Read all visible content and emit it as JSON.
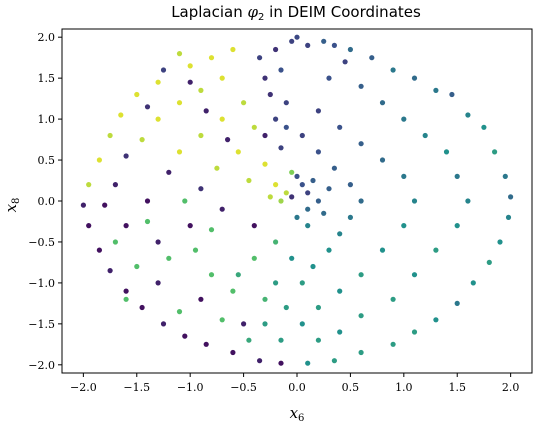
{
  "chart_data": {
    "type": "scatter",
    "title": "Laplacian φ2 in DEIM Coordinates",
    "title_parts": {
      "before": "Laplacian ",
      "symbol": "φ",
      "sub": "2",
      "after": " in DEIM Coordinates"
    },
    "xlabel": "x6",
    "xlabel_parts": {
      "var": "x",
      "sub": "6"
    },
    "ylabel": "x8",
    "ylabel_parts": {
      "var": "x",
      "sub": "8"
    },
    "xlim": [
      -2.2,
      2.2
    ],
    "ylim": [
      -2.1,
      2.1
    ],
    "xticks": [
      -2.0,
      -1.5,
      -1.0,
      -0.5,
      0.0,
      0.5,
      1.0,
      1.5,
      2.0
    ],
    "xtick_labels": [
      "−2.0",
      "−1.5",
      "−1.0",
      "−0.5",
      "0.0",
      "0.5",
      "1.0",
      "1.5",
      "2.0"
    ],
    "yticks": [
      -2.0,
      -1.5,
      -1.0,
      -0.5,
      0.0,
      0.5,
      1.0,
      1.5,
      2.0
    ],
    "ytick_labels": [
      "−2.0",
      "−1.5",
      "−1.0",
      "−0.5",
      "0.0",
      "0.5",
      "1.0",
      "1.5",
      "2.0"
    ],
    "grid": false,
    "legend": "none",
    "colormap": "viridis",
    "colormap_stops": [
      "#440154",
      "#3b528b",
      "#21918c",
      "#5ec962",
      "#fde725"
    ],
    "color_value_range": [
      0,
      1
    ],
    "points": [
      {
        "x": 0.0,
        "y": 2.0,
        "c": 0.22
      },
      {
        "x": 0.1,
        "y": 1.9,
        "c": 0.2
      },
      {
        "x": 0.25,
        "y": 1.95,
        "c": 0.3
      },
      {
        "x": 0.35,
        "y": 1.9,
        "c": 0.25
      },
      {
        "x": 0.5,
        "y": 1.85,
        "c": 0.35
      },
      {
        "x": 0.45,
        "y": 1.7,
        "c": 0.2
      },
      {
        "x": 0.7,
        "y": 1.75,
        "c": 0.3
      },
      {
        "x": 0.9,
        "y": 1.6,
        "c": 0.4
      },
      {
        "x": 1.1,
        "y": 1.5,
        "c": 0.35
      },
      {
        "x": 1.3,
        "y": 1.35,
        "c": 0.4
      },
      {
        "x": 1.45,
        "y": 1.3,
        "c": 0.3
      },
      {
        "x": 1.6,
        "y": 1.05,
        "c": 0.45
      },
      {
        "x": 1.75,
        "y": 0.9,
        "c": 0.5
      },
      {
        "x": 1.85,
        "y": 0.6,
        "c": 0.55
      },
      {
        "x": 1.95,
        "y": 0.3,
        "c": 0.4
      },
      {
        "x": 2.0,
        "y": 0.05,
        "c": 0.35
      },
      {
        "x": 1.98,
        "y": -0.2,
        "c": 0.45
      },
      {
        "x": 1.9,
        "y": -0.5,
        "c": 0.5
      },
      {
        "x": 1.8,
        "y": -0.75,
        "c": 0.55
      },
      {
        "x": 1.65,
        "y": -1.0,
        "c": 0.5
      },
      {
        "x": 1.5,
        "y": -1.25,
        "c": 0.4
      },
      {
        "x": 1.3,
        "y": -1.45,
        "c": 0.5
      },
      {
        "x": 1.1,
        "y": -1.6,
        "c": 0.55
      },
      {
        "x": 0.9,
        "y": -1.75,
        "c": 0.55
      },
      {
        "x": 0.6,
        "y": -1.85,
        "c": 0.55
      },
      {
        "x": 0.35,
        "y": -1.95,
        "c": 0.55
      },
      {
        "x": 0.1,
        "y": -1.98,
        "c": 0.5
      },
      {
        "x": 0.3,
        "y": 1.5,
        "c": 0.25
      },
      {
        "x": 0.6,
        "y": 1.4,
        "c": 0.3
      },
      {
        "x": 0.8,
        "y": 1.2,
        "c": 0.35
      },
      {
        "x": 1.0,
        "y": 1.0,
        "c": 0.4
      },
      {
        "x": 1.2,
        "y": 0.8,
        "c": 0.45
      },
      {
        "x": 1.4,
        "y": 0.6,
        "c": 0.5
      },
      {
        "x": 1.5,
        "y": 0.3,
        "c": 0.4
      },
      {
        "x": 1.6,
        "y": 0.0,
        "c": 0.45
      },
      {
        "x": 1.5,
        "y": -0.3,
        "c": 0.5
      },
      {
        "x": 1.3,
        "y": -0.6,
        "c": 0.55
      },
      {
        "x": 1.1,
        "y": -0.9,
        "c": 0.5
      },
      {
        "x": 0.9,
        "y": -1.2,
        "c": 0.55
      },
      {
        "x": 0.6,
        "y": -1.4,
        "c": 0.55
      },
      {
        "x": 0.4,
        "y": -1.6,
        "c": 0.5
      },
      {
        "x": 0.2,
        "y": -1.7,
        "c": 0.55
      },
      {
        "x": 0.2,
        "y": 1.1,
        "c": 0.2
      },
      {
        "x": 0.4,
        "y": 0.9,
        "c": 0.25
      },
      {
        "x": 0.6,
        "y": 0.7,
        "c": 0.3
      },
      {
        "x": 0.8,
        "y": 0.5,
        "c": 0.35
      },
      {
        "x": 1.0,
        "y": 0.3,
        "c": 0.4
      },
      {
        "x": 1.1,
        "y": 0.0,
        "c": 0.45
      },
      {
        "x": 1.0,
        "y": -0.3,
        "c": 0.5
      },
      {
        "x": 0.8,
        "y": -0.6,
        "c": 0.5
      },
      {
        "x": 0.6,
        "y": -0.9,
        "c": 0.55
      },
      {
        "x": 0.4,
        "y": -1.1,
        "c": 0.5
      },
      {
        "x": 0.2,
        "y": -1.3,
        "c": 0.55
      },
      {
        "x": 0.05,
        "y": -1.5,
        "c": 0.5
      },
      {
        "x": 0.05,
        "y": 0.8,
        "c": 0.2
      },
      {
        "x": 0.2,
        "y": 0.6,
        "c": 0.25
      },
      {
        "x": 0.35,
        "y": 0.4,
        "c": 0.3
      },
      {
        "x": 0.5,
        "y": 0.2,
        "c": 0.3
      },
      {
        "x": 0.6,
        "y": 0.0,
        "c": 0.35
      },
      {
        "x": 0.5,
        "y": -0.2,
        "c": 0.4
      },
      {
        "x": 0.4,
        "y": -0.4,
        "c": 0.45
      },
      {
        "x": 0.3,
        "y": -0.6,
        "c": 0.5
      },
      {
        "x": 0.15,
        "y": -0.8,
        "c": 0.5
      },
      {
        "x": 0.05,
        "y": -1.0,
        "c": 0.55
      },
      {
        "x": 0.0,
        "y": 0.3,
        "c": 0.25
      },
      {
        "x": 0.1,
        "y": 0.1,
        "c": 0.2
      },
      {
        "x": 0.2,
        "y": 0.0,
        "c": 0.3
      },
      {
        "x": 0.1,
        "y": -0.1,
        "c": 0.35
      },
      {
        "x": -0.05,
        "y": 0.05,
        "c": 0.15
      },
      {
        "x": 0.05,
        "y": 0.2,
        "c": 0.25
      },
      {
        "x": 0.15,
        "y": 0.25,
        "c": 0.3
      },
      {
        "x": 0.0,
        "y": -0.2,
        "c": 0.4
      },
      {
        "x": 0.1,
        "y": -0.3,
        "c": 0.45
      },
      {
        "x": 0.25,
        "y": -0.15,
        "c": 0.35
      },
      {
        "x": 0.3,
        "y": 0.15,
        "c": 0.3
      },
      {
        "x": -0.1,
        "y": 0.1,
        "c": 0.9
      },
      {
        "x": -0.2,
        "y": 0.2,
        "c": 0.95
      },
      {
        "x": -0.15,
        "y": 0.0,
        "c": 0.85
      },
      {
        "x": -0.25,
        "y": 0.05,
        "c": 0.9
      },
      {
        "x": -0.05,
        "y": 0.35,
        "c": 0.8
      },
      {
        "x": -0.05,
        "y": 1.95,
        "c": 0.2
      },
      {
        "x": -0.2,
        "y": 1.85,
        "c": 0.15
      },
      {
        "x": -0.35,
        "y": 1.75,
        "c": 0.2
      },
      {
        "x": -0.3,
        "y": 1.5,
        "c": 0.15
      },
      {
        "x": -0.15,
        "y": 1.6,
        "c": 0.25
      },
      {
        "x": -0.25,
        "y": 1.3,
        "c": 0.15
      },
      {
        "x": -0.1,
        "y": 1.2,
        "c": 0.2
      },
      {
        "x": -0.2,
        "y": 1.0,
        "c": 0.2
      },
      {
        "x": -0.1,
        "y": 0.9,
        "c": 0.25
      },
      {
        "x": -0.15,
        "y": 0.65,
        "c": 0.2
      },
      {
        "x": -0.3,
        "y": 0.8,
        "c": 0.1
      },
      {
        "x": -0.6,
        "y": 1.85,
        "c": 0.95
      },
      {
        "x": -0.8,
        "y": 1.75,
        "c": 0.95
      },
      {
        "x": -1.0,
        "y": 1.65,
        "c": 0.95
      },
      {
        "x": -1.1,
        "y": 1.8,
        "c": 0.9
      },
      {
        "x": -1.3,
        "y": 1.45,
        "c": 0.95
      },
      {
        "x": -1.5,
        "y": 1.3,
        "c": 0.95
      },
      {
        "x": -1.65,
        "y": 1.05,
        "c": 0.95
      },
      {
        "x": -1.75,
        "y": 0.8,
        "c": 0.9
      },
      {
        "x": -1.85,
        "y": 0.5,
        "c": 0.95
      },
      {
        "x": -1.95,
        "y": 0.2,
        "c": 0.9
      },
      {
        "x": -0.7,
        "y": 1.5,
        "c": 0.95
      },
      {
        "x": -0.9,
        "y": 1.35,
        "c": 0.9
      },
      {
        "x": -1.1,
        "y": 1.2,
        "c": 0.95
      },
      {
        "x": -1.3,
        "y": 1.0,
        "c": 0.95
      },
      {
        "x": -1.45,
        "y": 0.75,
        "c": 0.9
      },
      {
        "x": -0.5,
        "y": 1.2,
        "c": 0.9
      },
      {
        "x": -0.7,
        "y": 1.0,
        "c": 0.95
      },
      {
        "x": -0.9,
        "y": 0.8,
        "c": 0.9
      },
      {
        "x": -1.1,
        "y": 0.6,
        "c": 0.95
      },
      {
        "x": -0.4,
        "y": 0.9,
        "c": 0.9
      },
      {
        "x": -0.55,
        "y": 0.6,
        "c": 0.95
      },
      {
        "x": -0.75,
        "y": 0.4,
        "c": 0.9
      },
      {
        "x": -0.3,
        "y": 0.45,
        "c": 0.95
      },
      {
        "x": -0.45,
        "y": 0.25,
        "c": 0.9
      },
      {
        "x": -1.25,
        "y": 1.6,
        "c": 0.2
      },
      {
        "x": -1.0,
        "y": 1.45,
        "c": 0.1
      },
      {
        "x": -1.4,
        "y": 1.15,
        "c": 0.15
      },
      {
        "x": -0.85,
        "y": 1.1,
        "c": 0.1
      },
      {
        "x": -1.6,
        "y": 0.55,
        "c": 0.15
      },
      {
        "x": -1.2,
        "y": 0.35,
        "c": 0.1
      },
      {
        "x": -0.65,
        "y": 0.75,
        "c": 0.1
      },
      {
        "x": -1.7,
        "y": 0.2,
        "c": 0.1
      },
      {
        "x": -1.4,
        "y": 0.0,
        "c": 0.05
      },
      {
        "x": -0.9,
        "y": 0.15,
        "c": 0.15
      },
      {
        "x": -1.8,
        "y": -0.05,
        "c": 0.05
      },
      {
        "x": -2.0,
        "y": -0.05,
        "c": 0.1
      },
      {
        "x": -1.95,
        "y": -0.3,
        "c": 0.05
      },
      {
        "x": -1.85,
        "y": -0.6,
        "c": 0.05
      },
      {
        "x": -1.75,
        "y": -0.85,
        "c": 0.1
      },
      {
        "x": -1.6,
        "y": -1.1,
        "c": 0.05
      },
      {
        "x": -1.45,
        "y": -1.3,
        "c": 0.05
      },
      {
        "x": -1.25,
        "y": -1.5,
        "c": 0.1
      },
      {
        "x": -1.05,
        "y": -1.65,
        "c": 0.05
      },
      {
        "x": -0.85,
        "y": -1.75,
        "c": 0.05
      },
      {
        "x": -0.6,
        "y": -1.85,
        "c": 0.05
      },
      {
        "x": -0.35,
        "y": -1.95,
        "c": 0.1
      },
      {
        "x": -0.15,
        "y": -1.98,
        "c": 0.05
      },
      {
        "x": -1.6,
        "y": -0.3,
        "c": 0.05
      },
      {
        "x": -1.3,
        "y": -0.5,
        "c": 0.1
      },
      {
        "x": -1.0,
        "y": -0.3,
        "c": 0.05
      },
      {
        "x": -0.7,
        "y": -0.1,
        "c": 0.1
      },
      {
        "x": -0.4,
        "y": -0.3,
        "c": 0.05
      },
      {
        "x": -1.3,
        "y": -1.0,
        "c": 0.1
      },
      {
        "x": -0.9,
        "y": -1.2,
        "c": 0.05
      },
      {
        "x": -0.5,
        "y": -1.5,
        "c": 0.1
      },
      {
        "x": -1.7,
        "y": -0.5,
        "c": 0.7
      },
      {
        "x": -1.5,
        "y": -0.8,
        "c": 0.7
      },
      {
        "x": -1.2,
        "y": -0.7,
        "c": 0.7
      },
      {
        "x": -0.95,
        "y": -0.6,
        "c": 0.7
      },
      {
        "x": -1.4,
        "y": -0.25,
        "c": 0.7
      },
      {
        "x": -0.8,
        "y": -0.9,
        "c": 0.7
      },
      {
        "x": -0.6,
        "y": -1.1,
        "c": 0.7
      },
      {
        "x": -0.4,
        "y": -0.7,
        "c": 0.7
      },
      {
        "x": -0.3,
        "y": -1.2,
        "c": 0.65
      },
      {
        "x": -1.1,
        "y": -1.35,
        "c": 0.7
      },
      {
        "x": -0.7,
        "y": -1.45,
        "c": 0.7
      },
      {
        "x": -0.2,
        "y": -0.5,
        "c": 0.65
      },
      {
        "x": -0.8,
        "y": -0.35,
        "c": 0.7
      },
      {
        "x": -1.6,
        "y": -1.2,
        "c": 0.7
      },
      {
        "x": -1.05,
        "y": 0.0,
        "c": 0.7
      },
      {
        "x": -0.2,
        "y": -1.0,
        "c": 0.55
      },
      {
        "x": -0.3,
        "y": -1.5,
        "c": 0.55
      },
      {
        "x": -0.15,
        "y": -1.7,
        "c": 0.55
      },
      {
        "x": -0.45,
        "y": -1.7,
        "c": 0.6
      },
      {
        "x": -0.1,
        "y": -1.3,
        "c": 0.55
      },
      {
        "x": -0.05,
        "y": -0.7,
        "c": 0.5
      },
      {
        "x": -0.55,
        "y": -0.9,
        "c": 0.6
      }
    ]
  }
}
